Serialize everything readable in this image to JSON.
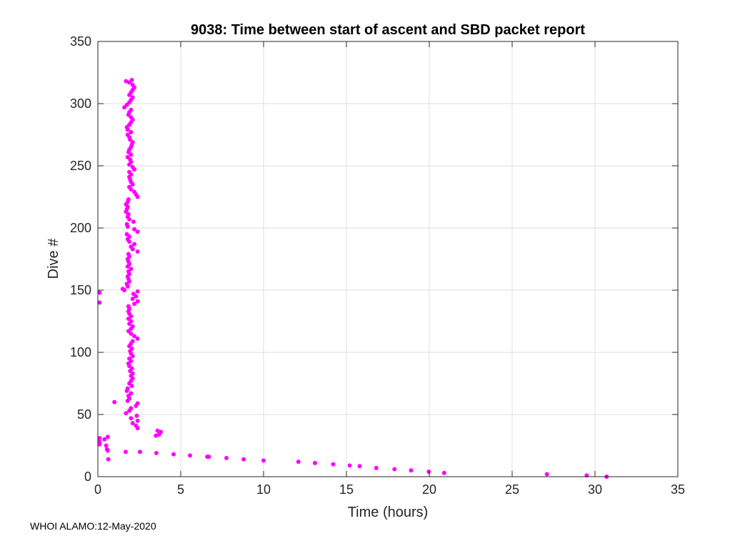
{
  "chart_data": {
    "type": "scatter",
    "title": "9038: Time between start of ascent and SBD packet report",
    "xlabel": "Time (hours)",
    "ylabel": "Dive #",
    "xlim": [
      0,
      35
    ],
    "ylim": [
      0,
      350
    ],
    "xticks": [
      0,
      5,
      10,
      15,
      20,
      25,
      30,
      35
    ],
    "yticks": [
      0,
      50,
      100,
      150,
      200,
      250,
      300,
      350
    ],
    "grid": true,
    "marker_color": "#ff00ff",
    "points": [
      [
        2.4,
        39
      ],
      [
        2.3,
        41
      ],
      [
        2.1,
        43
      ],
      [
        2.4,
        45
      ],
      [
        2.0,
        47
      ],
      [
        2.35,
        49
      ],
      [
        1.7,
        51
      ],
      [
        1.9,
        53
      ],
      [
        2.0,
        55
      ],
      [
        2.3,
        57
      ],
      [
        2.4,
        59
      ],
      [
        1.8,
        61
      ],
      [
        1.9,
        63
      ],
      [
        1.85,
        65
      ],
      [
        2.0,
        67
      ],
      [
        1.75,
        69
      ],
      [
        1.8,
        71
      ],
      [
        2.05,
        73
      ],
      [
        1.9,
        75
      ],
      [
        2.0,
        77
      ],
      [
        2.1,
        79
      ],
      [
        2.0,
        81
      ],
      [
        2.1,
        83
      ],
      [
        1.95,
        85
      ],
      [
        2.05,
        87
      ],
      [
        1.9,
        89
      ],
      [
        1.85,
        91
      ],
      [
        2.0,
        93
      ],
      [
        1.9,
        95
      ],
      [
        2.1,
        97
      ],
      [
        2.0,
        99
      ],
      [
        1.95,
        101
      ],
      [
        2.05,
        103
      ],
      [
        1.9,
        105
      ],
      [
        2.0,
        107
      ],
      [
        2.1,
        109
      ],
      [
        2.4,
        111
      ],
      [
        2.2,
        113
      ],
      [
        2.0,
        115
      ],
      [
        1.85,
        117
      ],
      [
        2.0,
        119
      ],
      [
        2.1,
        121
      ],
      [
        1.9,
        123
      ],
      [
        2.0,
        125
      ],
      [
        1.85,
        127
      ],
      [
        2.0,
        129
      ],
      [
        1.9,
        131
      ],
      [
        1.85,
        133
      ],
      [
        1.9,
        135
      ],
      [
        1.85,
        137
      ],
      [
        2.2,
        139
      ],
      [
        2.4,
        141
      ],
      [
        2.1,
        143
      ],
      [
        2.3,
        145
      ],
      [
        2.15,
        147
      ],
      [
        2.4,
        149
      ],
      [
        1.5,
        151
      ],
      [
        1.8,
        153
      ],
      [
        1.75,
        155
      ],
      [
        1.9,
        157
      ],
      [
        1.85,
        159
      ],
      [
        1.8,
        161
      ],
      [
        1.9,
        163
      ],
      [
        1.85,
        165
      ],
      [
        2.0,
        167
      ],
      [
        1.8,
        169
      ],
      [
        1.9,
        171
      ],
      [
        1.85,
        173
      ],
      [
        1.8,
        175
      ],
      [
        1.9,
        177
      ],
      [
        1.85,
        179
      ],
      [
        2.4,
        181
      ],
      [
        2.1,
        183
      ],
      [
        2.0,
        185
      ],
      [
        2.2,
        187
      ],
      [
        1.9,
        189
      ],
      [
        1.8,
        191
      ],
      [
        1.9,
        193
      ],
      [
        1.75,
        195
      ],
      [
        2.4,
        197
      ],
      [
        2.2,
        199
      ],
      [
        1.8,
        201
      ],
      [
        1.75,
        203
      ],
      [
        2.15,
        205
      ],
      [
        1.9,
        207
      ],
      [
        1.8,
        209
      ],
      [
        1.85,
        211
      ],
      [
        1.7,
        213
      ],
      [
        1.75,
        215
      ],
      [
        1.8,
        217
      ],
      [
        1.7,
        219
      ],
      [
        1.8,
        221
      ],
      [
        1.85,
        223
      ],
      [
        2.4,
        225
      ],
      [
        2.3,
        227
      ],
      [
        2.2,
        229
      ],
      [
        2.0,
        231
      ],
      [
        1.9,
        233
      ],
      [
        2.1,
        235
      ],
      [
        2.0,
        237
      ],
      [
        1.95,
        239
      ],
      [
        1.9,
        241
      ],
      [
        2.0,
        243
      ],
      [
        1.9,
        245
      ],
      [
        2.2,
        247
      ],
      [
        2.1,
        249
      ],
      [
        1.9,
        251
      ],
      [
        2.0,
        253
      ],
      [
        1.95,
        255
      ],
      [
        1.8,
        257
      ],
      [
        2.0,
        259
      ],
      [
        1.85,
        261
      ],
      [
        1.9,
        263
      ],
      [
        2.0,
        265
      ],
      [
        2.05,
        267
      ],
      [
        2.1,
        269
      ],
      [
        1.95,
        271
      ],
      [
        1.9,
        273
      ],
      [
        1.8,
        275
      ],
      [
        2.0,
        277
      ],
      [
        1.8,
        279
      ],
      [
        1.75,
        281
      ],
      [
        1.9,
        283
      ],
      [
        2.0,
        285
      ],
      [
        2.1,
        287
      ],
      [
        2.0,
        289
      ],
      [
        1.85,
        291
      ],
      [
        1.9,
        293
      ],
      [
        2.0,
        295
      ],
      [
        1.6,
        297
      ],
      [
        1.75,
        299
      ],
      [
        1.9,
        301
      ],
      [
        2.0,
        303
      ],
      [
        2.1,
        305
      ],
      [
        1.9,
        307
      ],
      [
        2.0,
        309
      ],
      [
        2.1,
        311
      ],
      [
        2.2,
        313
      ],
      [
        2.1,
        315
      ],
      [
        1.9,
        317
      ],
      [
        2.05,
        319
      ],
      [
        1.7,
        318
      ],
      [
        0.63,
        14
      ],
      [
        0.1,
        26
      ],
      [
        0.1,
        28
      ],
      [
        0.1,
        31
      ],
      [
        0.4,
        30
      ],
      [
        0.5,
        25
      ],
      [
        0.55,
        22
      ],
      [
        0.6,
        21
      ],
      [
        0.6,
        32
      ],
      [
        1.0,
        60
      ],
      [
        0.1,
        140
      ],
      [
        0.1,
        148
      ],
      [
        3.5,
        33
      ],
      [
        3.7,
        34
      ],
      [
        3.8,
        36
      ],
      [
        3.6,
        37
      ],
      [
        1.6,
        150
      ],
      [
        1.68,
        20
      ],
      [
        2.54,
        20
      ],
      [
        3.53,
        19
      ],
      [
        4.57,
        18
      ],
      [
        5.56,
        17
      ],
      [
        6.6,
        16
      ],
      [
        6.7,
        16
      ],
      [
        7.76,
        15
      ],
      [
        8.8,
        14
      ],
      [
        10.0,
        13
      ],
      [
        12.1,
        12
      ],
      [
        13.1,
        11
      ],
      [
        14.2,
        10
      ],
      [
        15.2,
        9
      ],
      [
        15.8,
        8.5
      ],
      [
        16.8,
        7
      ],
      [
        17.9,
        6
      ],
      [
        18.9,
        5
      ],
      [
        19.97,
        4
      ],
      [
        20.9,
        3
      ],
      [
        27.1,
        2
      ],
      [
        29.5,
        1
      ],
      [
        30.7,
        0
      ]
    ]
  },
  "footer": "WHOI ALAMO:12-May-2020"
}
